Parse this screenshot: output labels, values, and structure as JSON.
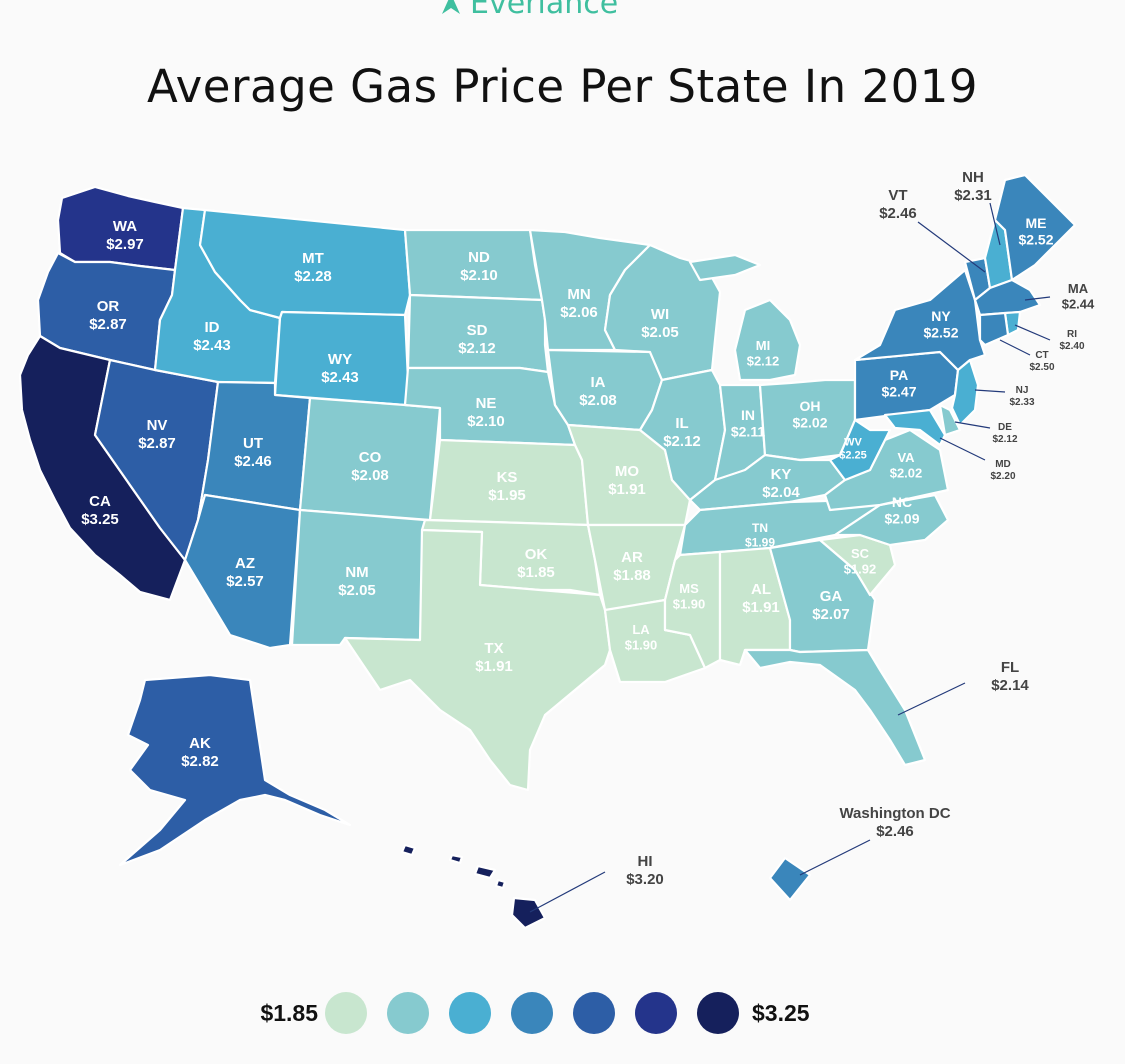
{
  "brand": {
    "name": "Everlance",
    "accent": "#3fbf9f"
  },
  "title": "Average Gas Price Per State In 2019",
  "chart_data": {
    "type": "choropleth",
    "title": "Average Gas Price Per State In 2019",
    "unit": "USD per gallon",
    "states": [
      {
        "code": "WA",
        "price": "$2.97",
        "value": 2.97
      },
      {
        "code": "OR",
        "price": "$2.87",
        "value": 2.87
      },
      {
        "code": "CA",
        "price": "$3.25",
        "value": 3.25
      },
      {
        "code": "NV",
        "price": "$2.87",
        "value": 2.87
      },
      {
        "code": "ID",
        "price": "$2.43",
        "value": 2.43
      },
      {
        "code": "MT",
        "price": "$2.28",
        "value": 2.28
      },
      {
        "code": "WY",
        "price": "$2.43",
        "value": 2.43
      },
      {
        "code": "UT",
        "price": "$2.46",
        "value": 2.46
      },
      {
        "code": "AZ",
        "price": "$2.57",
        "value": 2.57
      },
      {
        "code": "CO",
        "price": "$2.08",
        "value": 2.08
      },
      {
        "code": "NM",
        "price": "$2.05",
        "value": 2.05
      },
      {
        "code": "ND",
        "price": "$2.10",
        "value": 2.1
      },
      {
        "code": "SD",
        "price": "$2.12",
        "value": 2.12
      },
      {
        "code": "NE",
        "price": "$2.10",
        "value": 2.1
      },
      {
        "code": "KS",
        "price": "$1.95",
        "value": 1.95
      },
      {
        "code": "OK",
        "price": "$1.85",
        "value": 1.85
      },
      {
        "code": "TX",
        "price": "$1.91",
        "value": 1.91
      },
      {
        "code": "MN",
        "price": "$2.06",
        "value": 2.06
      },
      {
        "code": "IA",
        "price": "$2.08",
        "value": 2.08
      },
      {
        "code": "MO",
        "price": "$1.91",
        "value": 1.91
      },
      {
        "code": "AR",
        "price": "$1.88",
        "value": 1.88
      },
      {
        "code": "LA",
        "price": "$1.90",
        "value": 1.9
      },
      {
        "code": "WI",
        "price": "$2.05",
        "value": 2.05
      },
      {
        "code": "IL",
        "price": "$2.12",
        "value": 2.12
      },
      {
        "code": "MI",
        "price": "$2.12",
        "value": 2.12
      },
      {
        "code": "IN",
        "price": "$2.11",
        "value": 2.11
      },
      {
        "code": "OH",
        "price": "$2.02",
        "value": 2.02
      },
      {
        "code": "KY",
        "price": "$2.04",
        "value": 2.04
      },
      {
        "code": "TN",
        "price": "$1.99",
        "value": 1.99
      },
      {
        "code": "MS",
        "price": "$1.90",
        "value": 1.9
      },
      {
        "code": "AL",
        "price": "$1.91",
        "value": 1.91
      },
      {
        "code": "GA",
        "price": "$2.07",
        "value": 2.07
      },
      {
        "code": "FL",
        "price": "$2.14",
        "value": 2.14
      },
      {
        "code": "SC",
        "price": "$1.92",
        "value": 1.92
      },
      {
        "code": "NC",
        "price": "$2.09",
        "value": 2.09
      },
      {
        "code": "VA",
        "price": "$2.02",
        "value": 2.02
      },
      {
        "code": "WV",
        "price": "$2.25",
        "value": 2.25
      },
      {
        "code": "PA",
        "price": "$2.47",
        "value": 2.47
      },
      {
        "code": "NY",
        "price": "$2.52",
        "value": 2.52
      },
      {
        "code": "VT",
        "price": "$2.46",
        "value": 2.46
      },
      {
        "code": "NH",
        "price": "$2.31",
        "value": 2.31
      },
      {
        "code": "ME",
        "price": "$2.52",
        "value": 2.52
      },
      {
        "code": "MA",
        "price": "$2.44",
        "value": 2.44
      },
      {
        "code": "RI",
        "price": "$2.40",
        "value": 2.4
      },
      {
        "code": "CT",
        "price": "$2.50",
        "value": 2.5
      },
      {
        "code": "NJ",
        "price": "$2.33",
        "value": 2.33
      },
      {
        "code": "DE",
        "price": "$2.12",
        "value": 2.12
      },
      {
        "code": "MD",
        "price": "$2.20",
        "value": 2.2
      },
      {
        "code": "AK",
        "price": "$2.82",
        "value": 2.82
      },
      {
        "code": "HI",
        "price": "$3.20",
        "value": 3.2
      },
      {
        "code": "Washington DC",
        "price": "$2.46",
        "value": 2.46
      }
    ],
    "legend": {
      "min_label": "$1.85",
      "max_label": "$3.25",
      "colors": [
        "#c8e6cf",
        "#86cacf",
        "#4aafd2",
        "#3a86bb",
        "#2d5ea6",
        "#24348b",
        "#15205c"
      ]
    }
  }
}
